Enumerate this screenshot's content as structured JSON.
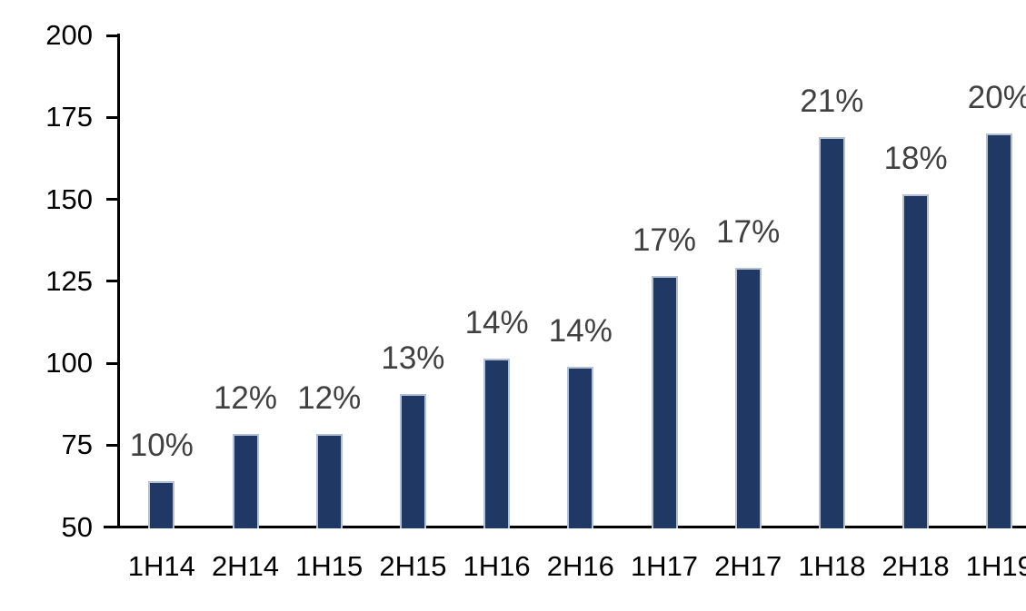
{
  "chart_data": {
    "type": "bar",
    "title": "",
    "xlabel": "",
    "ylabel": "",
    "categories": [
      "1H14",
      "2H14",
      "1H15",
      "2H15",
      "1H16",
      "2H16",
      "1H17",
      "2H17",
      "1H18",
      "2H18",
      "1H19"
    ],
    "values": [
      64,
      78.5,
      78.5,
      90.5,
      101.5,
      99,
      126.5,
      129,
      169,
      151.5,
      170
    ],
    "bar_labels": [
      "10%",
      "12%",
      "12%",
      "13%",
      "14%",
      "14%",
      "17%",
      "17%",
      "21%",
      "18%",
      "20%"
    ],
    "ylim": [
      50,
      200
    ],
    "yticks": [
      50,
      75,
      100,
      125,
      150,
      175,
      200
    ],
    "grid": false,
    "legend": false,
    "bar_color": "#1f3864",
    "bar_border_color": "#b3c0d6",
    "data_label_color": "#404040",
    "axis_color": "#000000"
  }
}
